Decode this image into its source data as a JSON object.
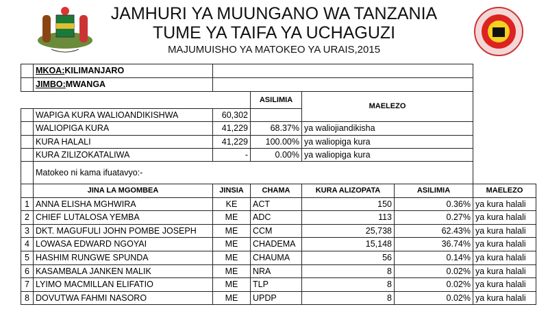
{
  "header": {
    "title": "JAMHURI YA MUUNGANO WA TANZANIA",
    "subtitle": "TUME YA TAIFA YA UCHAGUZI",
    "report": "MAJUMUISHO YA MATOKEO YA URAIS,2015"
  },
  "region": {
    "label": "MKOA:",
    "value": "KILIMANJARO"
  },
  "constituency": {
    "label": "JIMBO:",
    "value": "MWANGA"
  },
  "summary": {
    "percent_header": "ASILIMIA",
    "remarks_header": "MAELEZO",
    "rows": [
      [
        "WAPIGA KURA WALIOANDIKISHWA",
        "60,302",
        "",
        ""
      ],
      [
        "WALIOPIGA KURA",
        "41,229",
        "68.37%",
        "ya waliojiandikisha"
      ],
      [
        "KURA HALALI",
        "41,229",
        "100.00%",
        "ya waliopiga kura"
      ],
      [
        "KURA ZILIZOKATALIWA",
        "-",
        "0.00%",
        "ya waliopiga kura"
      ]
    ]
  },
  "results_note": "Matokeo ni kama ifuatavyo:-",
  "results": {
    "columns": [
      "JINA LA MGOMBEA",
      "JINSIA",
      "CHAMA",
      "KURA ALIZOPATA",
      "ASILIMIA",
      "MAELEZO"
    ],
    "rows": [
      [
        "1",
        "ANNA ELISHA MGHWIRA",
        "KE",
        "ACT",
        "150",
        "0.36%",
        "ya kura halali"
      ],
      [
        "2",
        "CHIEF LUTALOSA YEMBA",
        "ME",
        "ADC",
        "113",
        "0.27%",
        "ya kura halali"
      ],
      [
        "3",
        "DKT. MAGUFULI JOHN POMBE JOSEPH",
        "ME",
        "CCM",
        "25,738",
        "62.43%",
        "ya kura halali"
      ],
      [
        "4",
        "LOWASA EDWARD NGOYAI",
        "ME",
        "CHADEMA",
        "15,148",
        "36.74%",
        "ya kura halali"
      ],
      [
        "5",
        "HASHIM RUNGWE SPUNDA",
        "ME",
        "CHAUMA",
        "56",
        "0.14%",
        "ya kura halali"
      ],
      [
        "6",
        "KASAMBALA JANKEN MALIK",
        "ME",
        "NRA",
        "8",
        "0.02%",
        "ya kura halali"
      ],
      [
        "7",
        "LYIMO MACMILLAN ELIFATIO",
        "ME",
        "TLP",
        "8",
        "0.02%",
        "ya kura halali"
      ],
      [
        "8",
        "DOVUTWA FAHMI NASORO",
        "ME",
        "UPDP",
        "8",
        "0.02%",
        "ya kura halali"
      ]
    ]
  }
}
